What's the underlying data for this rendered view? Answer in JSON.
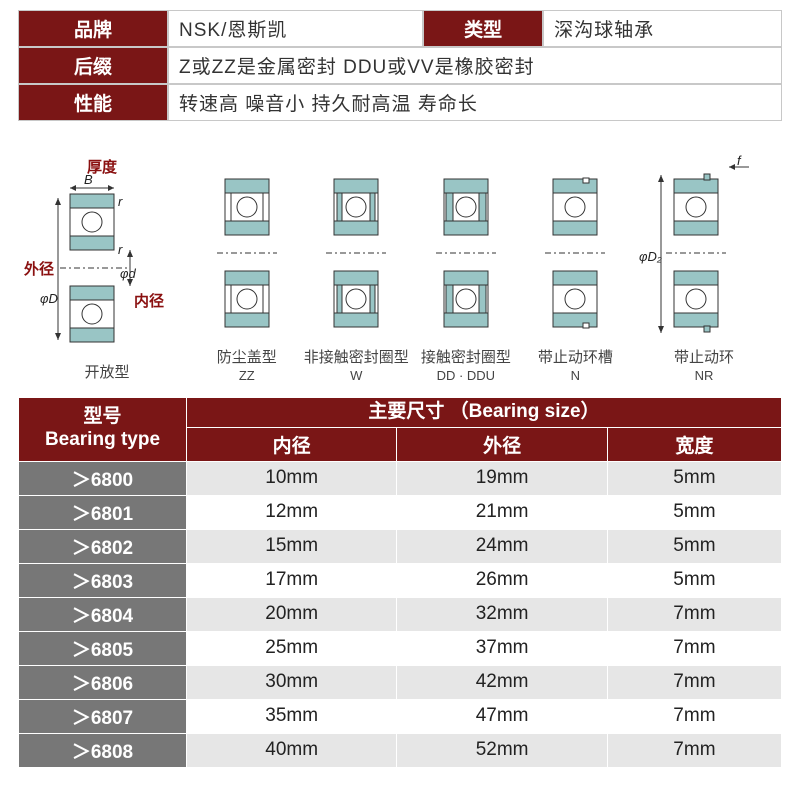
{
  "info": {
    "brand_label": "品牌",
    "brand_value": "NSK/恩斯凯",
    "type_label": "类型",
    "type_value": "深沟球轴承",
    "suffix_label": "后缀",
    "suffix_value": "Z或ZZ是金属密封 DDU或VV是橡胶密封",
    "perf_label": "性能",
    "perf_value": "转速高 噪音小 持久耐高温 寿命长"
  },
  "diagram": {
    "thickness_label": "厚度",
    "B_label": "B",
    "outer_label": "外径",
    "D_label": "φD",
    "inner_label": "内径",
    "d_label": "φd",
    "f_label": "f",
    "D2_label": "φD₂",
    "r_label": "r",
    "cap_open": "开放型",
    "cap_zz": "防尘盖型",
    "cap_zz_sub": "ZZ",
    "cap_w": "非接触密封圈型",
    "cap_w_sub": "W",
    "cap_dd": "接触密封圈型",
    "cap_dd_sub": "DD · DDU",
    "cap_n": "带止动环槽",
    "cap_n_sub": "N",
    "cap_nr": "带止动环",
    "cap_nr_sub": "NR",
    "colors": {
      "steel": "#99c5c5",
      "line": "#333333",
      "red": "#8a1010"
    }
  },
  "size_table": {
    "header_type_line1": "型号",
    "header_type_line2": "Bearing type",
    "header_main": "主要尺寸 （Bearing size）",
    "col_inner": "内径",
    "col_outer": "外径",
    "col_width": "宽度",
    "rows": [
      {
        "type": "＞6800",
        "inner": "10mm",
        "outer": "19mm",
        "width": "5mm"
      },
      {
        "type": "＞6801",
        "inner": "12mm",
        "outer": "21mm",
        "width": "5mm"
      },
      {
        "type": "＞6802",
        "inner": "15mm",
        "outer": "24mm",
        "width": "5mm"
      },
      {
        "type": "＞6803",
        "inner": "17mm",
        "outer": "26mm",
        "width": "5mm"
      },
      {
        "type": "＞6804",
        "inner": "20mm",
        "outer": "32mm",
        "width": "7mm"
      },
      {
        "type": "＞6805",
        "inner": "25mm",
        "outer": "37mm",
        "width": "7mm"
      },
      {
        "type": "＞6806",
        "inner": "30mm",
        "outer": "42mm",
        "width": "7mm"
      },
      {
        "type": "＞6807",
        "inner": "35mm",
        "outer": "47mm",
        "width": "7mm"
      },
      {
        "type": "＞6808",
        "inner": "40mm",
        "outer": "52mm",
        "width": "7mm"
      }
    ]
  },
  "style": {
    "brand_color": "#7a1616",
    "row_header_gray": "#777777"
  }
}
